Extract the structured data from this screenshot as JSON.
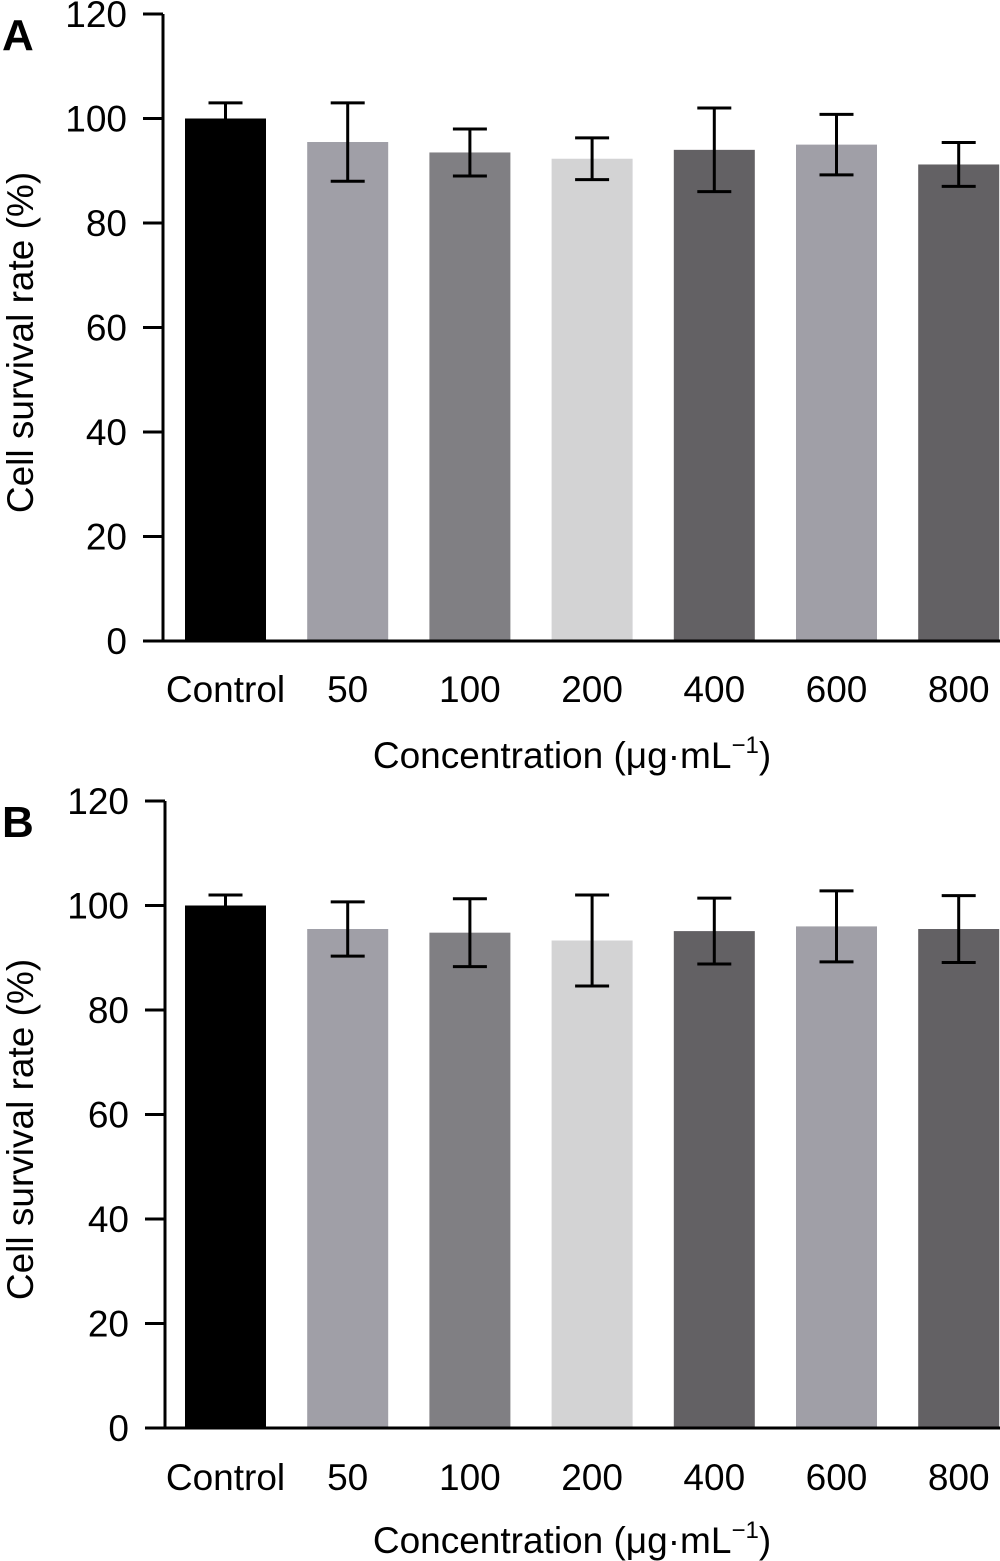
{
  "chart_data": [
    {
      "type": "bar",
      "panel_label": "A",
      "categories": [
        "Control",
        "50",
        "100",
        "200",
        "400",
        "600",
        "800"
      ],
      "values": [
        100,
        95.5,
        93.5,
        92.3,
        94,
        95,
        91.2
      ],
      "errors": [
        3,
        7.5,
        4.5,
        4,
        8,
        5.8,
        4.2
      ],
      "colors": [
        "#000000",
        "#a09fa7",
        "#807f83",
        "#d3d3d4",
        "#636164",
        "#a09fa7",
        "#636164"
      ],
      "ylabel": "Cell survival rate (%)",
      "xlabel": "Concentration (μg·mL",
      "xlabel_superscript": "−1",
      "xlabel_suffix": ")",
      "ylim": [
        0,
        120
      ],
      "yticks": [
        0,
        20,
        40,
        60,
        80,
        100,
        120
      ],
      "grid": false
    },
    {
      "type": "bar",
      "panel_label": "B",
      "categories": [
        "Control",
        "50",
        "100",
        "200",
        "400",
        "600",
        "800"
      ],
      "values": [
        100,
        95.5,
        94.8,
        93.3,
        95.1,
        96,
        95.5
      ],
      "errors": [
        2,
        5.2,
        6.5,
        8.7,
        6.3,
        6.8,
        6.4
      ],
      "colors": [
        "#000000",
        "#a09fa7",
        "#807f83",
        "#d3d3d4",
        "#636164",
        "#a09fa7",
        "#636164"
      ],
      "ylabel": "Cell survival rate (%)",
      "xlabel": "Concentration (μg·mL",
      "xlabel_superscript": "−1",
      "xlabel_suffix": ")",
      "ylim": [
        0,
        120
      ],
      "yticks": [
        0,
        20,
        40,
        60,
        80,
        100,
        120
      ],
      "grid": false
    }
  ]
}
